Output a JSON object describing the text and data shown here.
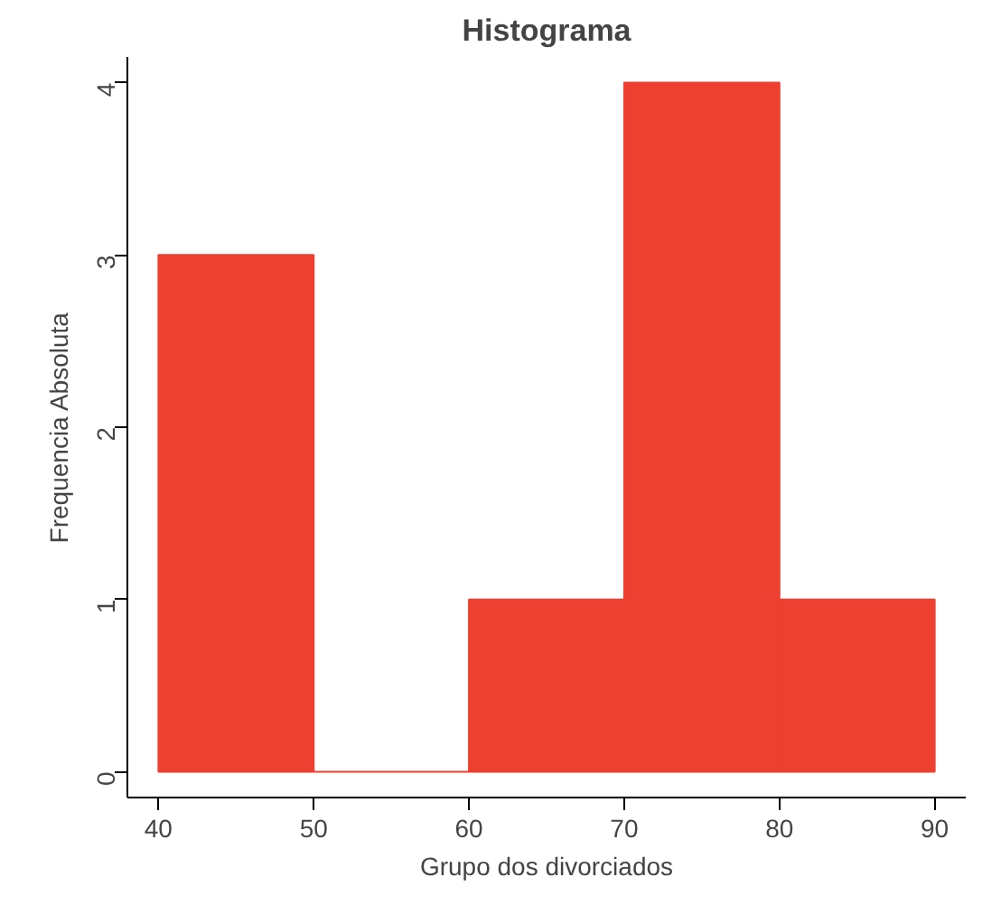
{
  "chart_data": {
    "type": "histogram",
    "title": "Histograma",
    "xlabel": "Grupo dos divorciados",
    "ylabel": "Frequencia Absoluta",
    "bins": [
      40,
      50,
      60,
      70,
      80,
      90
    ],
    "values": [
      3,
      0,
      1,
      4,
      1
    ],
    "color": "#ee4030",
    "xlim": [
      38,
      92
    ],
    "ylim": [
      -0.15,
      4.15
    ],
    "xticks": [
      40,
      50,
      60,
      70,
      80,
      90
    ],
    "yticks": [
      0,
      1,
      2,
      3,
      4
    ],
    "grid": false
  }
}
